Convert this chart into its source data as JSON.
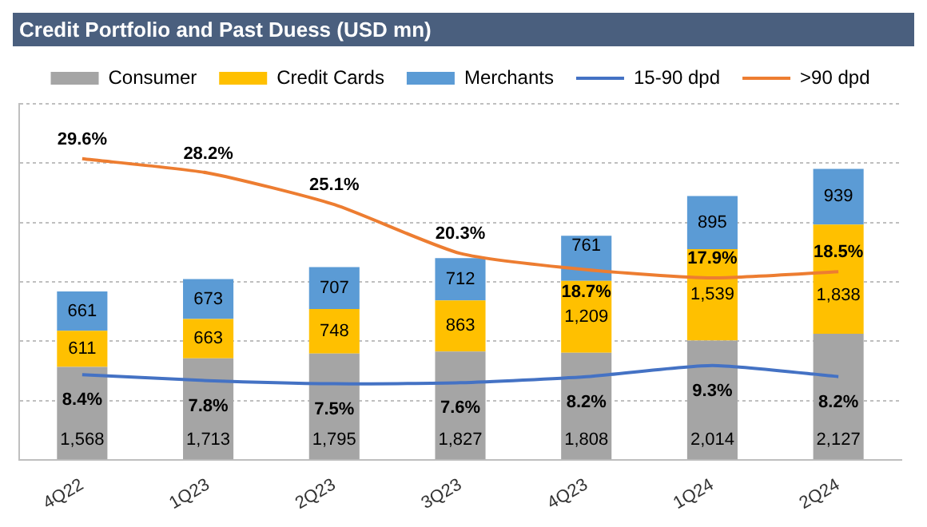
{
  "chart_data": {
    "type": "bar",
    "title": "Credit Portfolio and Past Duess (USD mn)",
    "categories": [
      "4Q22",
      "1Q23",
      "2Q23",
      "3Q23",
      "4Q23",
      "1Q24",
      "2Q24"
    ],
    "stacked": true,
    "ylim": [
      0,
      6000
    ],
    "yticks": [
      {
        "value": 0,
        "label": null
      },
      {
        "value": 1000,
        "label": null
      },
      {
        "value": 2000,
        "label": null
      },
      {
        "value": 3000,
        "label": null
      },
      {
        "value": 4000,
        "label": null
      },
      {
        "value": 5000,
        "label": null
      },
      {
        "value": 6000,
        "label": null
      }
    ],
    "y2lim": [
      0,
      35
    ],
    "tick_labels": "x",
    "grid": "y",
    "legend": "top",
    "marker": "none",
    "series": [
      {
        "name": "Consumer",
        "color": "#a5a5a5",
        "values": [
          1568,
          1713,
          1795,
          1827,
          1808,
          2014,
          2127
        ],
        "value_labels": [
          "1,568",
          "1,713",
          "1,795",
          "1,827",
          "1,808",
          "2,014",
          "2,127"
        ]
      },
      {
        "name": "Credit Cards",
        "color": "#ffc000",
        "values": [
          611,
          663,
          748,
          863,
          1209,
          1539,
          1838
        ],
        "value_labels": [
          "611",
          "663",
          "748",
          "863",
          "1,209",
          "1,539",
          "1,838"
        ]
      },
      {
        "name": "Merchants",
        "color": "#5b9bd5",
        "values": [
          661,
          673,
          707,
          712,
          761,
          895,
          939
        ],
        "value_labels": [
          "661",
          "673",
          "707",
          "712",
          "761",
          "895",
          "939"
        ]
      },
      {
        "name": "15-90 dpd",
        "type": "line",
        "axis": "y2",
        "color": "#4472c4",
        "values": [
          8.4,
          7.8,
          7.5,
          7.6,
          8.2,
          9.3,
          8.2
        ],
        "value_labels": [
          "8.4%",
          "7.8%",
          "7.5%",
          "7.6%",
          "8.2%",
          "9.3%",
          "8.2%"
        ]
      },
      {
        "name": ">90 dpd",
        "type": "line",
        "axis": "y2",
        "color": "#ed7d31",
        "values": [
          29.6,
          28.2,
          25.1,
          20.3,
          18.7,
          17.9,
          18.5
        ],
        "value_labels": [
          "29.6%",
          "28.2%",
          "25.1%",
          "20.3%",
          "18.7%",
          "17.9%",
          "18.5%"
        ]
      }
    ]
  }
}
